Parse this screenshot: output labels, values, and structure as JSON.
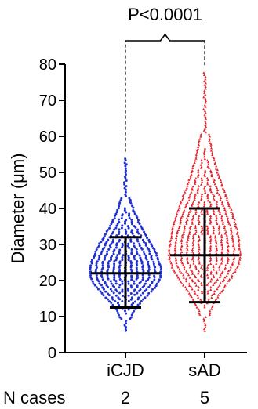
{
  "chart_data": {
    "type": "scatter",
    "subtype": "dot-plot with median and interquartile range",
    "ylabel": "Diameter (μm)",
    "ylim": [
      0,
      80
    ],
    "yticks": [
      0,
      10,
      20,
      30,
      40,
      50,
      60,
      70,
      80
    ],
    "categories": [
      "iCJD",
      "sAD"
    ],
    "series": [
      {
        "name": "iCJD",
        "color": "#1f2fd0",
        "marker": "circle",
        "median": 22,
        "q1": 12.5,
        "q3": 32,
        "min": 6,
        "max": 54
      },
      {
        "name": "sAD",
        "color": "#e8202a",
        "marker": "triangle",
        "median": 27,
        "q1": 14,
        "q3": 40,
        "min": 6,
        "max": 78
      }
    ],
    "significance": {
      "label": "P<0.0001"
    },
    "n_cases": {
      "label": "N cases",
      "values": [
        "2",
        "5"
      ]
    }
  }
}
